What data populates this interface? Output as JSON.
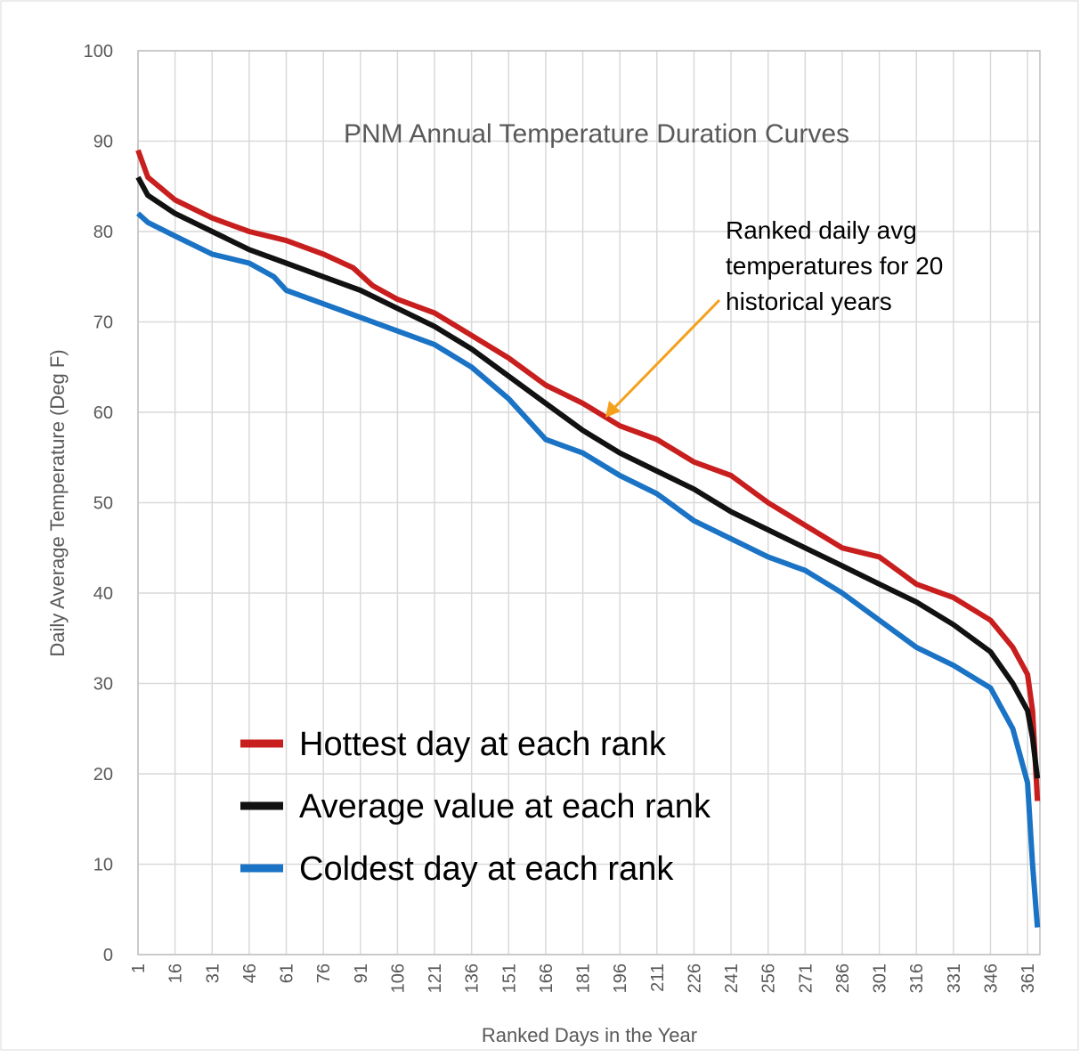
{
  "chart_data": {
    "type": "line",
    "title": "PNM Annual Temperature Duration Curves",
    "x_label": "Ranked Days in the Year",
    "y_label": "Daily Average Temperature (Deg F)",
    "annotation": [
      "Ranked daily avg",
      "temperatures for 20",
      "historical years"
    ],
    "annotation_color": "#f5a01a",
    "xlim": [
      1,
      366
    ],
    "xticks": [
      1,
      16,
      31,
      46,
      61,
      76,
      91,
      106,
      121,
      136,
      151,
      166,
      181,
      196,
      211,
      226,
      241,
      256,
      271,
      286,
      301,
      316,
      331,
      346,
      361
    ],
    "ylim": [
      0,
      100
    ],
    "yticks": [
      0,
      10,
      20,
      30,
      40,
      50,
      60,
      70,
      80,
      90,
      100
    ],
    "grid": true,
    "legend": "lower left",
    "series": [
      {
        "name": "Hottest day at each rank",
        "color": "#c81e1e",
        "x": [
          1,
          5,
          16,
          31,
          46,
          61,
          76,
          88,
          96,
          106,
          121,
          136,
          151,
          166,
          181,
          196,
          211,
          226,
          241,
          256,
          271,
          286,
          301,
          316,
          331,
          346,
          355,
          361,
          363,
          365
        ],
        "values": [
          89,
          86,
          83.5,
          81.5,
          80,
          79,
          77.5,
          76,
          74,
          72.5,
          71,
          68.5,
          66,
          63,
          61,
          58.5,
          57,
          54.5,
          53,
          50,
          47.5,
          45,
          44,
          41,
          39.5,
          37,
          34,
          31,
          27,
          17
        ]
      },
      {
        "name": "Average value at each rank",
        "color": "#111111",
        "x": [
          1,
          5,
          16,
          31,
          46,
          61,
          76,
          91,
          106,
          121,
          136,
          151,
          166,
          181,
          196,
          211,
          226,
          241,
          256,
          271,
          286,
          301,
          316,
          331,
          346,
          355,
          361,
          363,
          365
        ],
        "values": [
          86,
          84,
          82,
          80,
          78,
          76.5,
          75,
          73.5,
          71.5,
          69.5,
          67,
          64,
          61,
          58,
          55.5,
          53.5,
          51.5,
          49,
          47,
          45,
          43,
          41,
          39,
          36.5,
          33.5,
          30,
          27,
          24,
          19.5
        ]
      },
      {
        "name": "Coldest day at each rank",
        "color": "#1a73c4",
        "x": [
          1,
          5,
          16,
          31,
          46,
          56,
          61,
          76,
          91,
          106,
          121,
          136,
          151,
          166,
          181,
          196,
          211,
          226,
          241,
          256,
          271,
          286,
          301,
          316,
          331,
          346,
          355,
          361,
          363,
          365
        ],
        "values": [
          82,
          81,
          79.5,
          77.5,
          76.5,
          75,
          73.5,
          72,
          70.5,
          69,
          67.5,
          65,
          61.5,
          57,
          55.5,
          53,
          51,
          48,
          46,
          44,
          42.5,
          40,
          37,
          34,
          32,
          29.5,
          25,
          19,
          10,
          3
        ]
      }
    ]
  }
}
